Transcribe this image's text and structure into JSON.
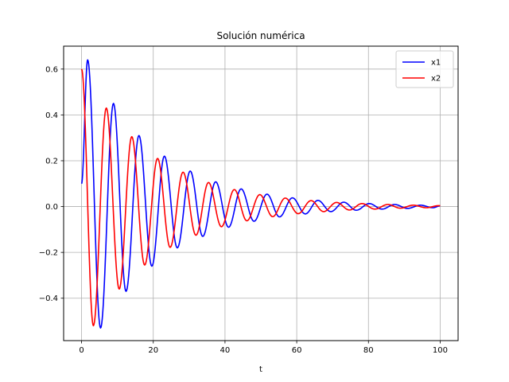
{
  "chart_data": {
    "type": "line",
    "title": "Solución numérica",
    "xlabel": "t",
    "ylabel": "",
    "xlim": [
      -5,
      105
    ],
    "ylim": [
      -0.585,
      0.7
    ],
    "xticks": [
      0,
      20,
      40,
      60,
      80,
      100
    ],
    "yticks": [
      -0.4,
      -0.2,
      0.0,
      0.2,
      0.4,
      0.6
    ],
    "ytick_labels": [
      "−0.4",
      "−0.2",
      "0.0",
      "0.2",
      "0.4",
      "0.6"
    ],
    "grid": true,
    "legend_position": "top-right",
    "series": [
      {
        "name": "x1",
        "color": "#0000ff",
        "x": [
          0,
          1.7,
          5.3,
          8.9,
          12.4,
          16.0,
          19.6,
          23.1,
          26.7,
          30.3,
          33.8,
          37.4,
          41.0,
          44.5,
          48.1,
          51.7,
          55.2,
          58.8,
          62.4,
          65.9,
          69.5,
          73.1,
          76.6,
          80.2,
          83.8,
          87.3,
          90.9,
          94.5,
          98.0,
          100
        ],
        "y": [
          0.1,
          0.64,
          -0.53,
          0.45,
          -0.37,
          0.31,
          -0.26,
          0.22,
          -0.18,
          0.155,
          -0.13,
          0.108,
          -0.09,
          0.077,
          -0.064,
          0.054,
          -0.045,
          0.038,
          -0.032,
          0.027,
          -0.022,
          0.019,
          -0.016,
          0.013,
          -0.011,
          0.009,
          -0.008,
          0.006,
          -0.005,
          0.003
        ]
      },
      {
        "name": "x2",
        "color": "#ff0000",
        "x": [
          0,
          3.3,
          6.9,
          10.5,
          14.0,
          17.6,
          21.2,
          24.7,
          28.3,
          31.9,
          35.4,
          39.0,
          42.6,
          46.1,
          49.7,
          53.3,
          56.8,
          60.4,
          64.0,
          67.5,
          71.1,
          74.7,
          78.2,
          81.8,
          85.4,
          88.9,
          92.5,
          96.1,
          99.6,
          100
        ],
        "y": [
          0.6,
          -0.52,
          0.43,
          -0.36,
          0.305,
          -0.255,
          0.21,
          -0.178,
          0.15,
          -0.125,
          0.105,
          -0.088,
          0.074,
          -0.062,
          0.052,
          -0.044,
          0.037,
          -0.031,
          0.026,
          -0.022,
          0.018,
          -0.015,
          0.013,
          -0.011,
          0.009,
          -0.007,
          0.006,
          -0.005,
          0.004,
          0.004
        ]
      }
    ]
  }
}
